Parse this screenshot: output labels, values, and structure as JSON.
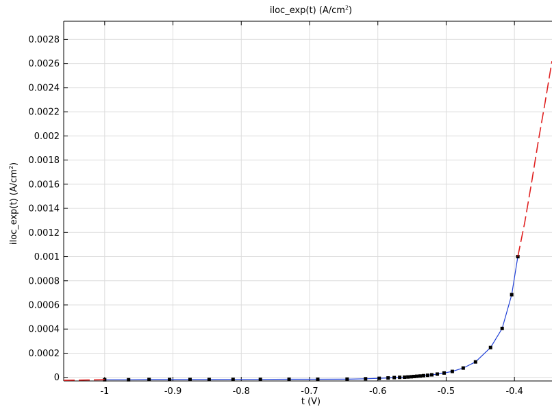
{
  "chart_data": {
    "type": "line",
    "title": {
      "main": "iloc_exp(t) (A/cm",
      "sup": "2",
      "tail": ")"
    },
    "xlabel": "t (V)",
    "ylabel": {
      "main": "iloc_exp(t) (A/cm",
      "sup": "2",
      "tail": ")"
    },
    "xlim": [
      -1.06,
      -0.345
    ],
    "ylim": [
      -3e-05,
      0.00295
    ],
    "grid": true,
    "x_ticks": [
      -1,
      -0.9,
      -0.8,
      -0.7,
      -0.6,
      -0.5,
      -0.4
    ],
    "x_tick_labels": [
      "-1",
      "-0.9",
      "-0.8",
      "-0.7",
      "-0.6",
      "-0.5",
      "-0.4"
    ],
    "y_ticks": [
      0,
      0.0002,
      0.0004,
      0.0006,
      0.0008,
      0.001,
      0.0012,
      0.0014,
      0.0016,
      0.0018,
      0.002,
      0.0022,
      0.0024,
      0.0026,
      0.0028
    ],
    "y_tick_labels": [
      "0",
      "0.0002",
      "0.0004",
      "0.0006",
      "0.0008",
      "0.001",
      "0.0012",
      "0.0014",
      "0.0016",
      "0.0018",
      "0.002",
      "0.0022",
      "0.0024",
      "0.0026",
      "0.0028"
    ],
    "series": [
      {
        "role": "data",
        "color": "#1f3fd6",
        "marker_color": "#000000",
        "x": [
          -1.0,
          -0.965,
          -0.935,
          -0.905,
          -0.875,
          -0.847,
          -0.812,
          -0.772,
          -0.73,
          -0.688,
          -0.645,
          -0.618,
          -0.598,
          -0.585,
          -0.576,
          -0.568,
          -0.561,
          -0.556,
          -0.551,
          -0.547,
          -0.543,
          -0.538,
          -0.533,
          -0.527,
          -0.521,
          -0.513,
          -0.503,
          -0.491,
          -0.475,
          -0.457,
          -0.435,
          -0.418,
          -0.404,
          -0.395
        ],
        "y": [
          -2e-05,
          -2e-05,
          -1.8e-05,
          -1.8e-05,
          -1.8e-05,
          -1.8e-05,
          -1.7e-05,
          -1.7e-05,
          -1.6e-05,
          -1.6e-05,
          -1.5e-05,
          -1.2e-05,
          -8e-06,
          -5e-06,
          -2e-06,
          0.0,
          1e-06,
          3e-06,
          5e-06,
          7e-06,
          9e-06,
          1.1e-05,
          1.4e-05,
          1.7e-05,
          2.1e-05,
          2.7e-05,
          3.6e-05,
          4.9e-05,
          7.7e-05,
          0.000128,
          0.000247,
          0.000405,
          0.000685,
          0.001
        ]
      },
      {
        "role": "extrapolation-left",
        "color": "#e02020",
        "dashed": true,
        "x": [
          -1.06,
          -1.0
        ],
        "y": [
          -2.5e-05,
          -2e-05
        ]
      },
      {
        "role": "extrapolation-right",
        "color": "#e02020",
        "dashed": true,
        "x": [
          -0.395,
          -0.385,
          -0.375,
          -0.365,
          -0.355,
          -0.345
        ],
        "y": [
          0.001,
          0.00128,
          0.00161,
          0.00196,
          0.00228,
          0.00262
        ]
      }
    ]
  }
}
